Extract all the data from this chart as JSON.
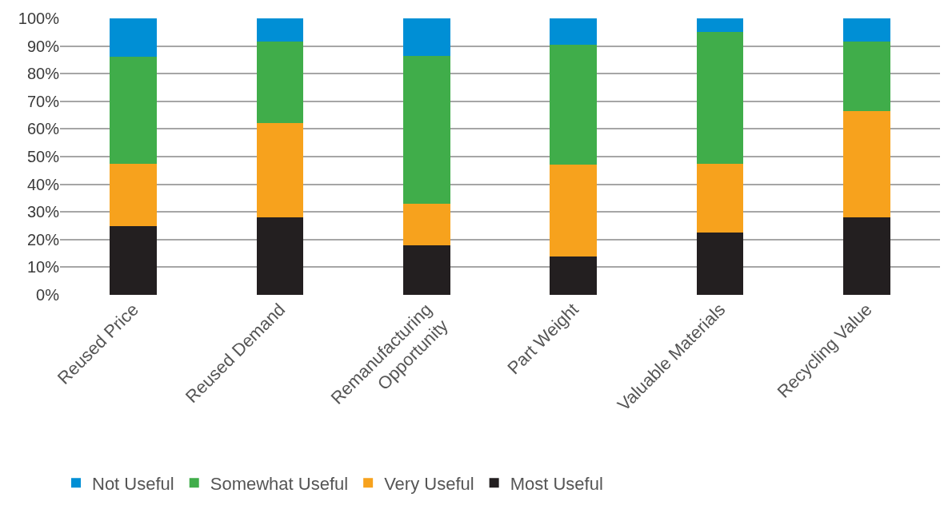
{
  "chart_data": {
    "type": "bar",
    "stacked": true,
    "categories": [
      "Reused Price",
      "Reused Demand",
      "Remanufacturing Opportunity",
      "Part Weight",
      "Valuable Materials",
      "Recycling Value"
    ],
    "series": [
      {
        "name": "Most Useful",
        "color": "#231f20",
        "values": [
          25,
          28,
          18,
          14,
          22.5,
          28
        ]
      },
      {
        "name": "Very Useful",
        "color": "#f7a21d",
        "values": [
          22.5,
          34,
          15,
          33,
          25,
          38.5
        ]
      },
      {
        "name": "Somewhat Useful",
        "color": "#40ad4a",
        "values": [
          38.5,
          29.5,
          53.5,
          43.5,
          47.5,
          25
        ]
      },
      {
        "name": "Not Useful",
        "color": "#008fd5",
        "values": [
          14,
          8.5,
          13.5,
          9.5,
          5,
          8.5
        ]
      }
    ],
    "ylim": [
      0,
      100
    ],
    "yticks": [
      {
        "value": 0,
        "label": "0%"
      },
      {
        "value": 10,
        "label": "10%"
      },
      {
        "value": 20,
        "label": "20%"
      },
      {
        "value": 30,
        "label": "30%"
      },
      {
        "value": 40,
        "label": "40%"
      },
      {
        "value": 50,
        "label": "50%"
      },
      {
        "value": 60,
        "label": "60%"
      },
      {
        "value": 70,
        "label": "70%"
      },
      {
        "value": 80,
        "label": "80%"
      },
      {
        "value": 90,
        "label": "90%"
      },
      {
        "value": 100,
        "label": "100%"
      }
    ],
    "grid": "y",
    "legend": "bottom left"
  }
}
